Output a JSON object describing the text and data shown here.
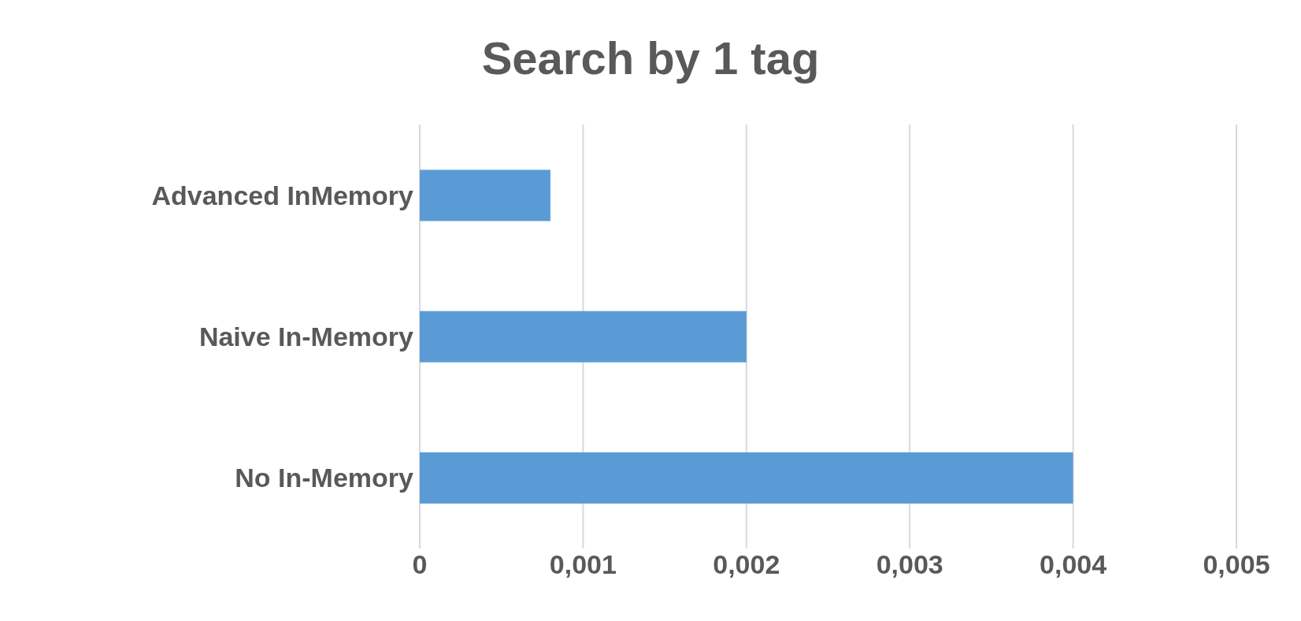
{
  "chart_data": {
    "type": "bar",
    "orientation": "horizontal",
    "title": "Search by 1 tag",
    "categories": [
      "Advanced InMemory",
      "Naive In-Memory",
      "No In-Memory"
    ],
    "values": [
      0.0008,
      0.002,
      0.004
    ],
    "color": "#5b9bd5",
    "xlim": [
      0,
      0.005
    ],
    "xticks": [
      0,
      {
        "value": 0.001,
        "label": "0,001"
      },
      {
        "value": 0.002,
        "label": "0,002"
      },
      {
        "value": 0.003,
        "label": "0,003"
      },
      {
        "value": 0.004,
        "label": "0,004"
      },
      {
        "value": 0.005,
        "label": "0,005"
      }
    ],
    "grid": "x"
  }
}
